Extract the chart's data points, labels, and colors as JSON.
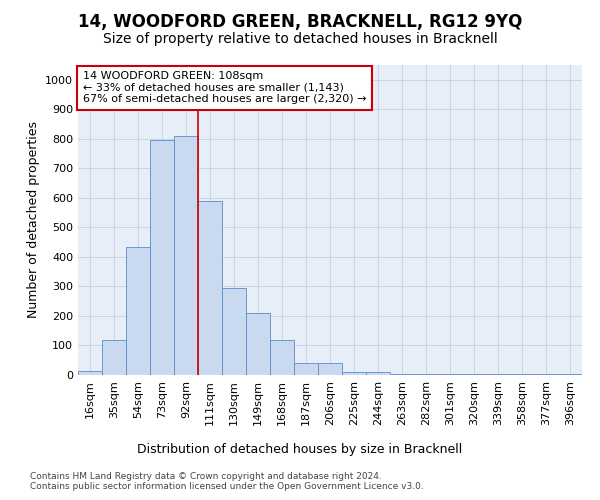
{
  "title": "14, WOODFORD GREEN, BRACKNELL, RG12 9YQ",
  "subtitle": "Size of property relative to detached houses in Bracknell",
  "xlabel_bottom": "Distribution of detached houses by size in Bracknell",
  "ylabel": "Number of detached properties",
  "categories": [
    "16sqm",
    "35sqm",
    "54sqm",
    "73sqm",
    "92sqm",
    "111sqm",
    "130sqm",
    "149sqm",
    "168sqm",
    "187sqm",
    "206sqm",
    "225sqm",
    "244sqm",
    "263sqm",
    "282sqm",
    "301sqm",
    "320sqm",
    "339sqm",
    "358sqm",
    "377sqm",
    "396sqm"
  ],
  "bar_heights": [
    15,
    120,
    435,
    795,
    810,
    590,
    295,
    210,
    120,
    40,
    40,
    10,
    10,
    5,
    5,
    5,
    5,
    5,
    5,
    5,
    5
  ],
  "bar_color": "#c9d9ef",
  "bar_edge_color": "#5b8cc8",
  "grid_color": "#c8d4e8",
  "bg_color": "#e8eef8",
  "vline_x_index": 5,
  "vline_color": "#cc0000",
  "annotation_line1": "14 WOODFORD GREEN: 108sqm",
  "annotation_line2": "← 33% of detached houses are smaller (1,143)",
  "annotation_line3": "67% of semi-detached houses are larger (2,320) →",
  "annotation_box_color": "#ffffff",
  "annotation_box_edge": "#cc0000",
  "footer_line1": "Contains HM Land Registry data © Crown copyright and database right 2024.",
  "footer_line2": "Contains public sector information licensed under the Open Government Licence v3.0.",
  "ylim": [
    0,
    1050
  ],
  "yticks": [
    0,
    100,
    200,
    300,
    400,
    500,
    600,
    700,
    800,
    900,
    1000
  ],
  "title_fontsize": 12,
  "subtitle_fontsize": 10,
  "axis_label_fontsize": 9,
  "tick_fontsize": 8,
  "annotation_fontsize": 8,
  "footer_fontsize": 6.5
}
